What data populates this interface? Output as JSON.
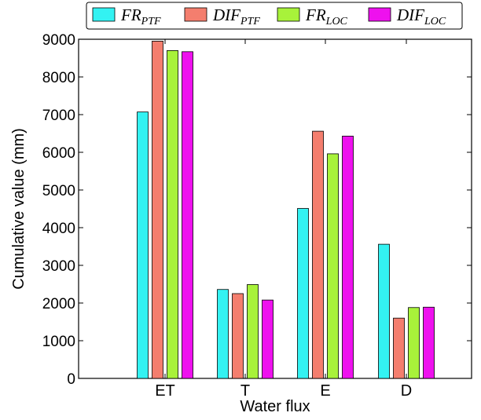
{
  "chart_data": {
    "type": "bar",
    "title": "",
    "xlabel": "Water flux",
    "ylabel": "Cumulative value (mm)",
    "categories": [
      "ET",
      "T",
      "E",
      "D"
    ],
    "ylim": [
      0,
      9000
    ],
    "yticks": [
      0,
      1000,
      2000,
      3000,
      4000,
      5000,
      6000,
      7000,
      8000,
      9000
    ],
    "grid": false,
    "legend_position": "top",
    "series": [
      {
        "name": "FR",
        "subscript": "PTF",
        "color": "#33f2f2",
        "values": [
          7070,
          2360,
          4510,
          3560
        ]
      },
      {
        "name": "DIF",
        "subscript": "PTF",
        "color": "#f47e6e",
        "values": [
          8950,
          2250,
          6560,
          1600
        ]
      },
      {
        "name": "FR",
        "subscript": "LOC",
        "color": "#a8f23a",
        "values": [
          8700,
          2490,
          5960,
          1880
        ]
      },
      {
        "name": "DIF",
        "subscript": "LOC",
        "color": "#ee11ee",
        "values": [
          8670,
          2080,
          6430,
          1890
        ]
      }
    ]
  }
}
